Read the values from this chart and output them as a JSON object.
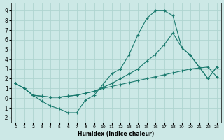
{
  "xlabel": "Humidex (Indice chaleur)",
  "bg_color": "#cce8e6",
  "grid_color": "#afd4d0",
  "line_color": "#1a7a6e",
  "xlim": [
    -0.5,
    23.5
  ],
  "ylim": [
    -2.5,
    9.8
  ],
  "xticks": [
    0,
    1,
    2,
    3,
    4,
    5,
    6,
    7,
    8,
    9,
    10,
    11,
    12,
    13,
    14,
    15,
    16,
    17,
    18,
    19,
    20,
    21,
    22,
    23
  ],
  "yticks": [
    -2,
    -1,
    0,
    1,
    2,
    3,
    4,
    5,
    6,
    7,
    8,
    9
  ],
  "line1_x": [
    0,
    1,
    2,
    3,
    4,
    5,
    6,
    7,
    8,
    9,
    10,
    11,
    12,
    13,
    14,
    15,
    16,
    17,
    18,
    19,
    20,
    21,
    22,
    23
  ],
  "line1_y": [
    1.5,
    1.0,
    0.3,
    -0.3,
    -0.8,
    -1.1,
    -1.5,
    -1.5,
    -0.2,
    0.3,
    1.4,
    2.5,
    3.0,
    4.5,
    6.5,
    8.2,
    9.0,
    9.0,
    8.5,
    5.2,
    4.4,
    3.2,
    2.0,
    3.2
  ],
  "line2_x": [
    0,
    1,
    2,
    3,
    4,
    5,
    6,
    7,
    8,
    9,
    10,
    11,
    12,
    13,
    14,
    15,
    16,
    17,
    18,
    19,
    20,
    21,
    22,
    23
  ],
  "line2_y": [
    1.5,
    1.0,
    0.3,
    0.2,
    0.1,
    0.1,
    0.2,
    0.3,
    0.5,
    0.7,
    1.1,
    1.5,
    2.0,
    2.5,
    3.0,
    3.8,
    4.5,
    5.5,
    6.7,
    5.2,
    4.4,
    3.2,
    2.0,
    3.2
  ],
  "line3_x": [
    0,
    1,
    2,
    3,
    4,
    5,
    6,
    7,
    8,
    9,
    10,
    11,
    12,
    13,
    14,
    15,
    16,
    17,
    18,
    19,
    20,
    21,
    22,
    23
  ],
  "line3_y": [
    1.5,
    1.0,
    0.3,
    0.2,
    0.1,
    0.1,
    0.2,
    0.3,
    0.5,
    0.7,
    1.0,
    1.2,
    1.4,
    1.6,
    1.8,
    2.0,
    2.2,
    2.4,
    2.6,
    2.8,
    3.0,
    3.1,
    3.2,
    2.2
  ]
}
